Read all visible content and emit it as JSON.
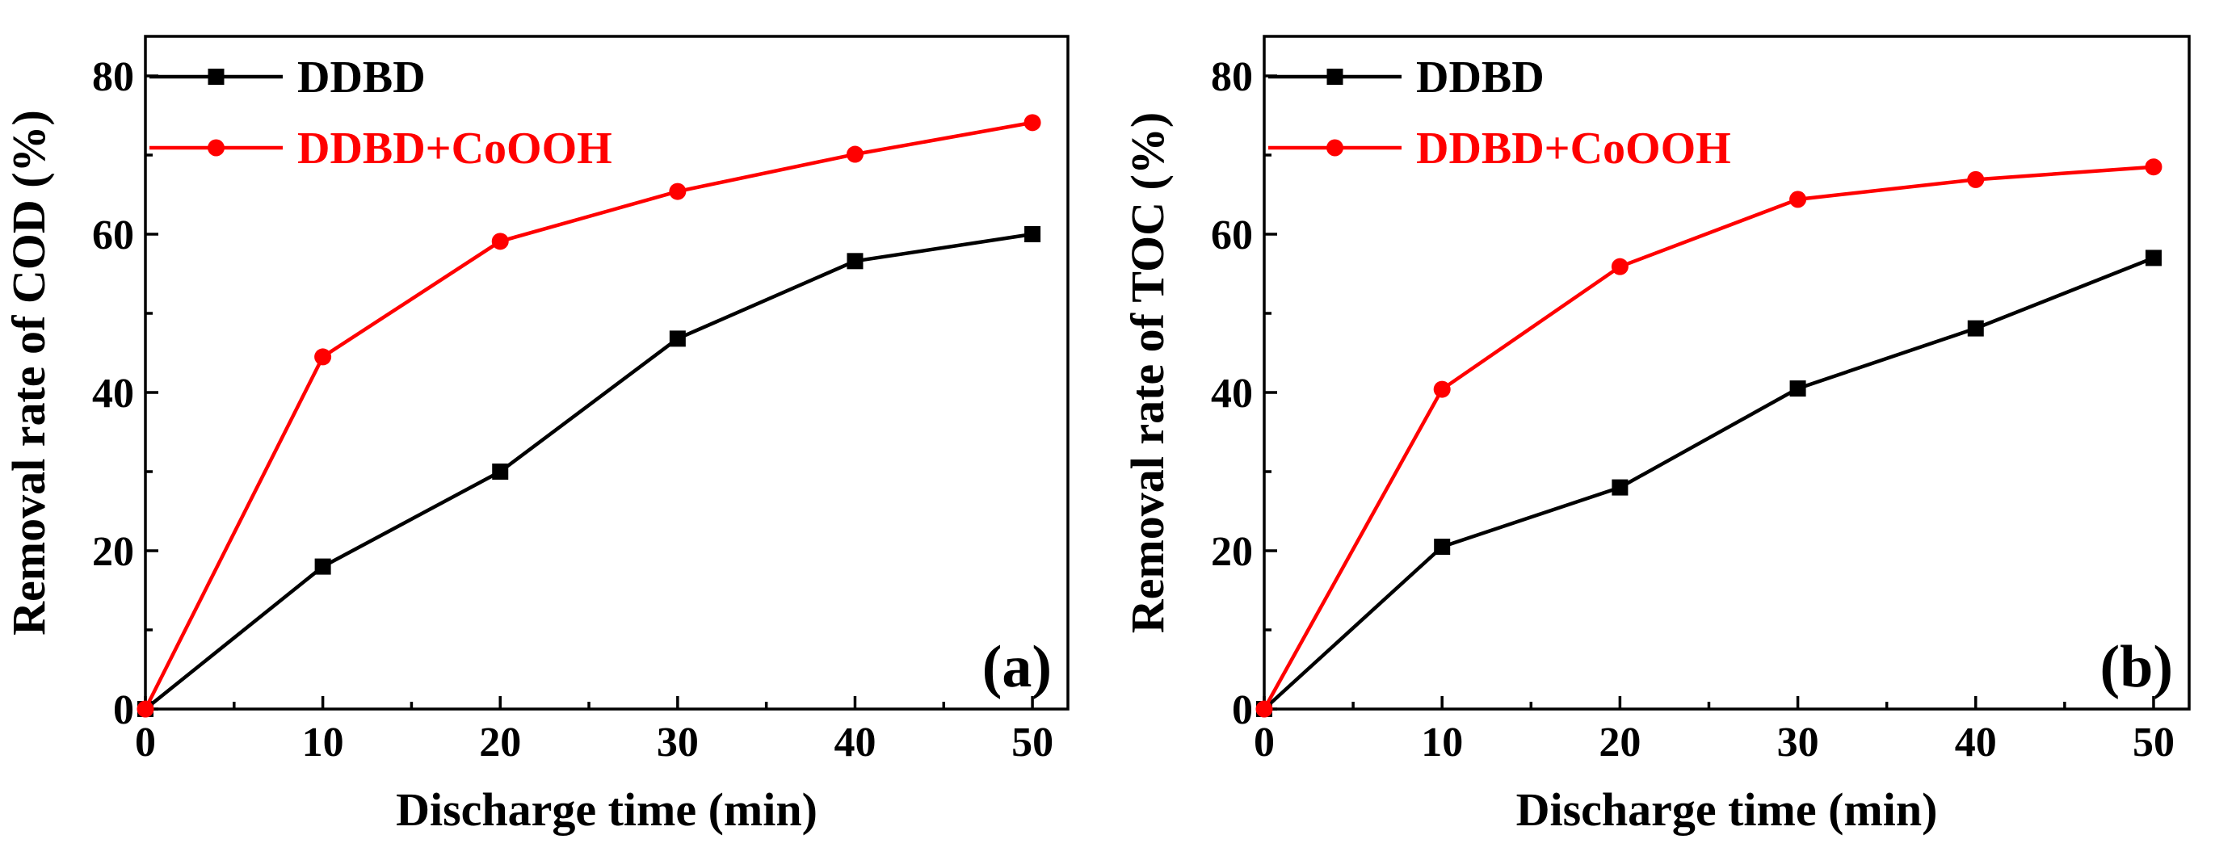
{
  "chart_data": [
    {
      "type": "line",
      "panel_label": "(a)",
      "xlabel": "Discharge time (min)",
      "ylabel": "Removal rate of COD (%)",
      "xlim": [
        0,
        52
      ],
      "ylim": [
        0,
        85
      ],
      "xticks": [
        0,
        10,
        20,
        30,
        40,
        50
      ],
      "yticks": [
        0,
        20,
        40,
        60,
        80
      ],
      "legend_position": "top-left",
      "series": [
        {
          "name": "DDBD",
          "color": "#000000",
          "marker": "square",
          "x": [
            0,
            10,
            20,
            30,
            40,
            50
          ],
          "values": [
            0,
            18.0,
            30.0,
            46.8,
            56.6,
            60.0
          ]
        },
        {
          "name": "DDBD+CoOOH",
          "color": "#ff0000",
          "marker": "circle",
          "x": [
            0,
            10,
            20,
            30,
            40,
            50
          ],
          "values": [
            0,
            44.5,
            59.1,
            65.4,
            70.1,
            74.1
          ]
        }
      ]
    },
    {
      "type": "line",
      "panel_label": "(b)",
      "xlabel": "Discharge time (min)",
      "ylabel": "Removal rate of TOC (%)",
      "xlim": [
        0,
        52
      ],
      "ylim": [
        0,
        85
      ],
      "xticks": [
        0,
        10,
        20,
        30,
        40,
        50
      ],
      "yticks": [
        0,
        20,
        40,
        60,
        80
      ],
      "legend_position": "top-left",
      "series": [
        {
          "name": "DDBD",
          "color": "#000000",
          "marker": "square",
          "x": [
            0,
            10,
            20,
            30,
            40,
            50
          ],
          "values": [
            0,
            20.5,
            28.0,
            40.5,
            48.1,
            57.0
          ]
        },
        {
          "name": "DDBD+CoOOH",
          "color": "#ff0000",
          "marker": "circle",
          "x": [
            0,
            10,
            20,
            30,
            40,
            50
          ],
          "values": [
            0,
            40.4,
            55.9,
            64.4,
            66.9,
            68.5
          ]
        }
      ]
    }
  ]
}
